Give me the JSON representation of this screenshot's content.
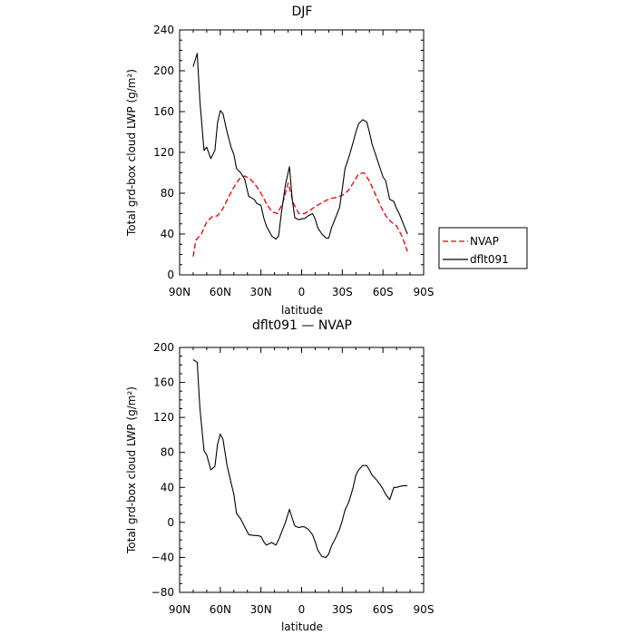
{
  "chart_data": [
    {
      "type": "line",
      "title": "DJF",
      "xlabel": "latitude",
      "ylabel": "Total grd-box cloud LWP (g/m²)",
      "xlim": [
        90,
        -90
      ],
      "ylim": [
        0,
        240
      ],
      "x_ticks": [
        90,
        60,
        30,
        0,
        -30,
        -60,
        -90
      ],
      "x_tick_labels": [
        "90N",
        "60N",
        "30N",
        "0",
        "30S",
        "60S",
        "90S"
      ],
      "y_ticks": [
        0,
        40,
        80,
        120,
        160,
        200,
        240
      ],
      "y_tick_labels": [
        "0",
        "40",
        "80",
        "120",
        "160",
        "200",
        "240"
      ],
      "legend": "right",
      "series": [
        {
          "name": "NVAP",
          "color": "#e00000",
          "dash": true,
          "x": [
            80,
            78,
            74,
            70,
            66,
            62,
            58,
            54,
            50,
            46,
            42,
            38,
            34,
            30,
            26,
            22,
            18,
            14,
            10,
            6,
            2,
            -2,
            -6,
            -10,
            -14,
            -18,
            -22,
            -26,
            -30,
            -34,
            -38,
            -42,
            -46,
            -50,
            -54,
            -58,
            -62,
            -66,
            -70,
            -74,
            -78
          ],
          "y": [
            18,
            34,
            40,
            52,
            57,
            58,
            65,
            76,
            86,
            94,
            97,
            94,
            88,
            80,
            70,
            62,
            60,
            70,
            90,
            70,
            60,
            60,
            63,
            67,
            70,
            73,
            75,
            76,
            78,
            82,
            90,
            99,
            100,
            92,
            80,
            68,
            58,
            52,
            48,
            38,
            23
          ]
        },
        {
          "name": "dflt091",
          "color": "#000000",
          "dash": false,
          "x": [
            80,
            77,
            75,
            72,
            70,
            67,
            64,
            62,
            60,
            58,
            55,
            52,
            50,
            48,
            45,
            42,
            39,
            35,
            33,
            30,
            28,
            26,
            22,
            19,
            17,
            15,
            12,
            9,
            7,
            5,
            2,
            0,
            -2,
            -5,
            -8,
            -10,
            -12,
            -15,
            -18,
            -20,
            -22,
            -25,
            -28,
            -30,
            -32,
            -35,
            -38,
            -40,
            -42,
            -45,
            -48,
            -50,
            -52,
            -55,
            -58,
            -60,
            -62,
            -65,
            -68,
            -70,
            -72,
            -75,
            -78
          ],
          "y": [
            204,
            217,
            170,
            122,
            125,
            114,
            122,
            149,
            161,
            158,
            140,
            125,
            118,
            104,
            100,
            94,
            77,
            74,
            70,
            68,
            56,
            48,
            38,
            35,
            38,
            60,
            88,
            106,
            75,
            56,
            54,
            55,
            55,
            58,
            60,
            55,
            46,
            40,
            36,
            36,
            46,
            56,
            66,
            84,
            104,
            116,
            130,
            140,
            148,
            152,
            150,
            140,
            128,
            116,
            104,
            96,
            92,
            74,
            72,
            65,
            60,
            50,
            40
          ]
        }
      ]
    },
    {
      "type": "line",
      "title": "dflt091 — NVAP",
      "xlabel": "latitude",
      "ylabel": "Total grd-box cloud LWP (g/m²)",
      "xlim": [
        90,
        -90
      ],
      "ylim": [
        -80,
        200
      ],
      "x_ticks": [
        90,
        60,
        30,
        0,
        -30,
        -60,
        -90
      ],
      "x_tick_labels": [
        "90N",
        "60N",
        "30N",
        "0",
        "30S",
        "60S",
        "90S"
      ],
      "y_ticks": [
        -80,
        -40,
        0,
        40,
        80,
        120,
        160,
        200
      ],
      "y_tick_labels": [
        "−80",
        "−40",
        "0",
        "40",
        "80",
        "120",
        "160",
        "200"
      ],
      "series": [
        {
          "name": "",
          "color": "#000000",
          "dash": false,
          "x": [
            80,
            77,
            75,
            72,
            70,
            67,
            64,
            62,
            60,
            58,
            55,
            52,
            50,
            48,
            45,
            42,
            39,
            35,
            33,
            30,
            28,
            26,
            22,
            19,
            17,
            15,
            12,
            9,
            7,
            5,
            2,
            0,
            -2,
            -5,
            -8,
            -10,
            -12,
            -15,
            -18,
            -20,
            -22,
            -25,
            -28,
            -30,
            -32,
            -35,
            -38,
            -40,
            -42,
            -45,
            -48,
            -50,
            -52,
            -55,
            -58,
            -60,
            -62,
            -65,
            -68,
            -70,
            -72,
            -75,
            -78
          ],
          "y": [
            186,
            183,
            130,
            82,
            77,
            60,
            64,
            89,
            101,
            95,
            65,
            45,
            32,
            10,
            4,
            -5,
            -14,
            -15,
            -15,
            -16,
            -22,
            -26,
            -23,
            -26,
            -20,
            -12,
            0,
            15,
            5,
            -4,
            -6,
            -5,
            -5,
            -8,
            -14,
            -22,
            -32,
            -39,
            -40,
            -36,
            -27,
            -18,
            -8,
            2,
            14,
            24,
            40,
            54,
            60,
            65,
            65,
            60,
            54,
            49,
            43,
            38,
            32,
            26,
            40,
            40,
            41,
            42,
            42
          ]
        }
      ]
    }
  ]
}
